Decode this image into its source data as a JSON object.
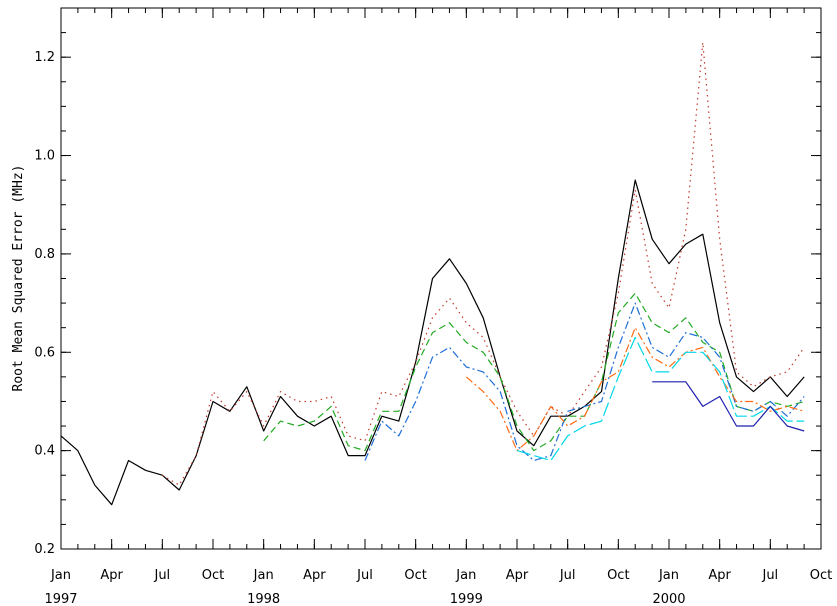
{
  "chart_data": {
    "type": "line",
    "title": "",
    "xlabel": "",
    "ylabel": "Root Mean Squared Error (MHz)",
    "ylim": [
      0.2,
      1.3
    ],
    "yticks": [
      "0.2",
      "0.4",
      "0.6",
      "0.8",
      "1.0",
      "1.2"
    ],
    "xticks": [
      {
        "x": 1997.0,
        "label": "Jan"
      },
      {
        "x": 1997.25,
        "label": "Apr"
      },
      {
        "x": 1997.5,
        "label": "Jul"
      },
      {
        "x": 1997.75,
        "label": "Oct"
      },
      {
        "x": 1998.0,
        "label": "Jan"
      },
      {
        "x": 1998.25,
        "label": "Apr"
      },
      {
        "x": 1998.5,
        "label": "Jul"
      },
      {
        "x": 1998.75,
        "label": "Oct"
      },
      {
        "x": 1999.0,
        "label": "Jan"
      },
      {
        "x": 1999.25,
        "label": "Apr"
      },
      {
        "x": 1999.5,
        "label": "Jul"
      },
      {
        "x": 1999.75,
        "label": "Oct"
      },
      {
        "x": 2000.0,
        "label": "Jan"
      },
      {
        "x": 2000.25,
        "label": "Apr"
      },
      {
        "x": 2000.5,
        "label": "Jul"
      },
      {
        "x": 2000.75,
        "label": "Oct"
      }
    ],
    "year_labels": [
      {
        "x": 1997.0,
        "label": "1997"
      },
      {
        "x": 1998.0,
        "label": "1998"
      },
      {
        "x": 1999.0,
        "label": "1999"
      },
      {
        "x": 2000.0,
        "label": "2000"
      }
    ],
    "xlim": [
      1997.0,
      2000.75
    ],
    "series": [
      {
        "color": "#000000",
        "dash": "",
        "x": [
          1997.0,
          1997.083,
          1997.167,
          1997.25,
          1997.333,
          1997.417,
          1997.5,
          1997.583,
          1997.667,
          1997.75,
          1997.833,
          1997.917,
          1998.0,
          1998.083,
          1998.167,
          1998.25,
          1998.333,
          1998.417,
          1998.5,
          1998.583,
          1998.667,
          1998.75,
          1998.833,
          1998.917,
          1999.0,
          1999.083,
          1999.167,
          1999.25,
          1999.333,
          1999.417,
          1999.5,
          1999.583,
          1999.667,
          1999.75,
          1999.833,
          1999.917,
          2000.0,
          2000.083,
          2000.167,
          2000.25,
          2000.333,
          2000.417,
          2000.5,
          2000.583,
          2000.667
        ],
        "y": [
          0.43,
          0.4,
          0.33,
          0.29,
          0.38,
          0.36,
          0.35,
          0.32,
          0.39,
          0.5,
          0.48,
          0.53,
          0.44,
          0.51,
          0.47,
          0.45,
          0.47,
          0.39,
          0.39,
          0.47,
          0.46,
          0.58,
          0.75,
          0.79,
          0.74,
          0.67,
          0.55,
          0.44,
          0.41,
          0.47,
          0.47,
          0.49,
          0.52,
          0.75,
          0.95,
          0.83,
          0.78,
          0.82,
          0.84,
          0.66,
          0.55,
          0.52,
          0.55,
          0.51,
          0.55
        ]
      },
      {
        "color": "#c0392b",
        "dash": "1.5 4",
        "x": [
          1997.5,
          1997.583,
          1997.667,
          1997.75,
          1997.833,
          1997.917,
          1998.0,
          1998.083,
          1998.167,
          1998.25,
          1998.333,
          1998.417,
          1998.5,
          1998.583,
          1998.667,
          1998.75,
          1998.833,
          1998.917,
          1999.0,
          1999.083,
          1999.167,
          1999.25,
          1999.333,
          1999.417,
          1999.5,
          1999.583,
          1999.667,
          1999.75,
          1999.833,
          1999.917,
          2000.0,
          2000.083,
          2000.167,
          2000.25,
          2000.333,
          2000.417,
          2000.5,
          2000.583,
          2000.667
        ],
        "y": [
          0.35,
          0.33,
          0.39,
          0.52,
          0.48,
          0.52,
          0.45,
          0.52,
          0.5,
          0.5,
          0.51,
          0.43,
          0.42,
          0.52,
          0.51,
          0.58,
          0.67,
          0.71,
          0.66,
          0.63,
          0.55,
          0.48,
          0.43,
          0.49,
          0.47,
          0.52,
          0.57,
          0.72,
          0.93,
          0.74,
          0.69,
          0.85,
          1.23,
          0.83,
          0.56,
          0.53,
          0.55,
          0.56,
          0.61
        ]
      },
      {
        "color": "#22aa22",
        "dash": "7 4",
        "x": [
          1998.0,
          1998.083,
          1998.167,
          1998.25,
          1998.333,
          1998.417,
          1998.5,
          1998.583,
          1998.667,
          1998.75,
          1998.833,
          1998.917,
          1999.0,
          1999.083,
          1999.167,
          1999.25,
          1999.333,
          1999.417,
          1999.5,
          1999.583,
          1999.667,
          1999.75,
          1999.833,
          1999.917,
          2000.0,
          2000.083,
          2000.167,
          2000.25,
          2000.333,
          2000.417,
          2000.5,
          2000.583,
          2000.667
        ],
        "y": [
          0.42,
          0.46,
          0.45,
          0.46,
          0.49,
          0.41,
          0.4,
          0.48,
          0.48,
          0.57,
          0.64,
          0.66,
          0.62,
          0.6,
          0.55,
          0.45,
          0.4,
          0.42,
          0.47,
          0.47,
          0.54,
          0.68,
          0.72,
          0.66,
          0.64,
          0.67,
          0.62,
          0.6,
          0.49,
          0.48,
          0.5,
          0.49,
          0.5
        ]
      },
      {
        "color": "#1f6fd6",
        "dash": "8 3 2 3",
        "x": [
          1998.5,
          1998.583,
          1998.667,
          1998.75,
          1998.833,
          1998.917,
          1999.0,
          1999.083,
          1999.167,
          1999.25,
          1999.333,
          1999.417,
          1999.5,
          1999.583,
          1999.667,
          1999.75,
          1999.833,
          1999.917,
          2000.0,
          2000.083,
          2000.167,
          2000.25,
          2000.333,
          2000.417,
          2000.5,
          2000.583,
          2000.667
        ],
        "y": [
          0.38,
          0.46,
          0.43,
          0.5,
          0.59,
          0.61,
          0.57,
          0.56,
          0.52,
          0.41,
          0.38,
          0.39,
          0.48,
          0.49,
          0.5,
          0.61,
          0.7,
          0.61,
          0.59,
          0.64,
          0.63,
          0.59,
          0.49,
          0.48,
          0.5,
          0.47,
          0.51
        ]
      },
      {
        "color": "#ff6a13",
        "dash": "8 3 2 3",
        "x": [
          1999.0,
          1999.083,
          1999.167,
          1999.25,
          1999.333,
          1999.417,
          1999.5,
          1999.583,
          1999.667,
          1999.75,
          1999.833,
          1999.917,
          2000.0,
          2000.083,
          2000.167,
          2000.25,
          2000.333,
          2000.417,
          2000.5,
          2000.583,
          2000.667
        ],
        "y": [
          0.55,
          0.52,
          0.48,
          0.4,
          0.43,
          0.49,
          0.45,
          0.47,
          0.54,
          0.56,
          0.65,
          0.59,
          0.57,
          0.6,
          0.61,
          0.55,
          0.5,
          0.5,
          0.48,
          0.49,
          0.48
        ]
      },
      {
        "color": "#00d8e8",
        "dash": "14 4",
        "x": [
          1999.25,
          1999.333,
          1999.417,
          1999.5,
          1999.583,
          1999.667,
          1999.75,
          1999.833,
          1999.917,
          2000.0,
          2000.083,
          2000.167,
          2000.25,
          2000.333,
          2000.417,
          2000.5,
          2000.583,
          2000.667
        ],
        "y": [
          0.4,
          0.39,
          0.38,
          0.43,
          0.45,
          0.46,
          0.55,
          0.63,
          0.56,
          0.56,
          0.6,
          0.6,
          0.56,
          0.47,
          0.47,
          0.49,
          0.46,
          0.46
        ]
      },
      {
        "color": "#1f1fb0",
        "dash": "",
        "x": [
          1999.917,
          2000.0,
          2000.083,
          2000.167,
          2000.25,
          2000.333,
          2000.417,
          2000.5,
          2000.583,
          2000.667
        ],
        "y": [
          0.54,
          0.54,
          0.54,
          0.49,
          0.51,
          0.45,
          0.45,
          0.49,
          0.45,
          0.44
        ]
      }
    ]
  }
}
